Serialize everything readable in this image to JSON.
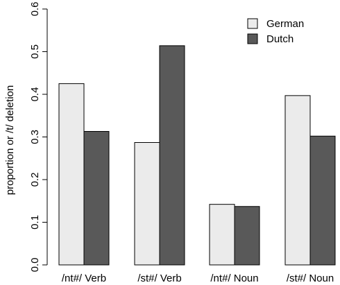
{
  "chart_data": {
    "type": "bar",
    "categories": [
      "/nt#/ Verb",
      "/st#/ Verb",
      "/nt#/ Noun",
      "/st#/ Noun"
    ],
    "series": [
      {
        "name": "German",
        "color": "#ebebeb",
        "values": [
          0.425,
          0.287,
          0.142,
          0.397
        ]
      },
      {
        "name": "Dutch",
        "color": "#595959",
        "values": [
          0.313,
          0.514,
          0.137,
          0.302
        ]
      }
    ],
    "ylabel": "proportion or /t/ deletion",
    "xlabel": "",
    "ylim": [
      0,
      0.6
    ],
    "yticks": [
      "0.0",
      "0.1",
      "0.2",
      "0.3",
      "0.4",
      "0.5",
      "0.6"
    ],
    "legend": {
      "position": "top-right",
      "entries": [
        "German",
        "Dutch"
      ]
    },
    "grid": false
  }
}
